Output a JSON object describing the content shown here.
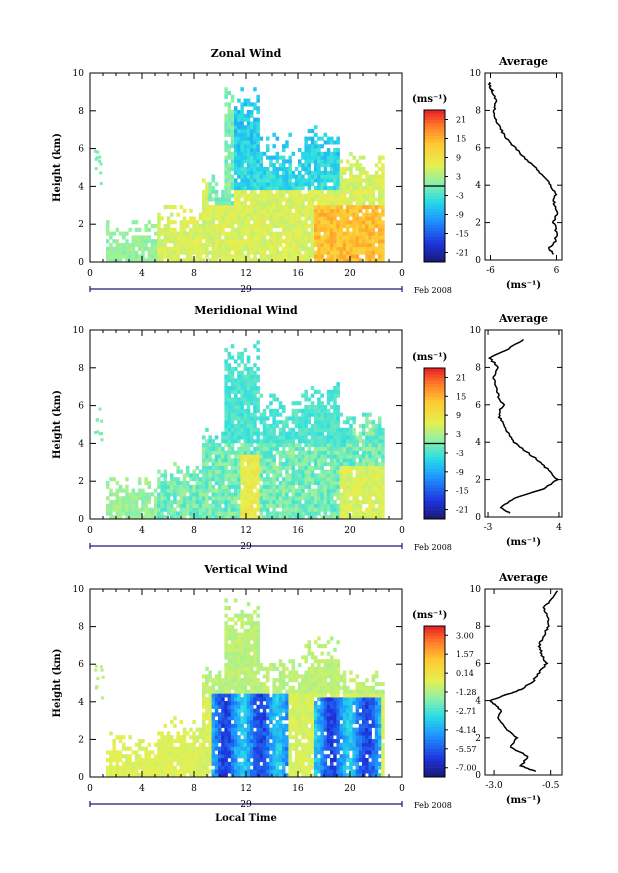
{
  "chart_data": [
    {
      "type": "heatmap",
      "title": "Zonal Wind",
      "ylabel": "Height (km)",
      "xlabel": "",
      "x_ticks": [
        "0",
        "4",
        "8",
        "12",
        "16",
        "20",
        "0"
      ],
      "y_ticks": [
        "0",
        "2",
        "4",
        "6",
        "8",
        "10"
      ],
      "xlim": [
        0,
        24
      ],
      "ylim": [
        0,
        10
      ],
      "date_label": "29",
      "date_suffix": "Feb 2008",
      "colorbar": {
        "unit": "(ms⁻¹)",
        "ticks": [
          "21",
          "15",
          "9",
          "3",
          "-3",
          "-9",
          "-15",
          "-21"
        ],
        "min": -24,
        "max": 24
      },
      "profile": {
        "title": "Average",
        "xlabel": "(ms⁻¹)",
        "x_ticks": [
          "-6",
          "6"
        ],
        "xlim": [
          -7,
          7
        ],
        "y_ticks": [
          "0",
          "2",
          "4",
          "6",
          "8",
          "10"
        ],
        "heights": [
          0.3,
          0.6,
          1,
          1.5,
          2,
          2.5,
          3,
          3.5,
          4,
          4.5,
          5,
          5.5,
          6,
          6.5,
          7,
          7.5,
          8,
          8.5,
          9,
          9.2,
          9.5
        ],
        "values": [
          5.5,
          4.5,
          5.8,
          6.0,
          5.5,
          6.0,
          5.5,
          5.8,
          5.0,
          3.5,
          2.0,
          0.0,
          -1.5,
          -3.0,
          -4.2,
          -5.0,
          -5.4,
          -5.0,
          -5.6,
          -6.0,
          -6.2
        ]
      }
    },
    {
      "type": "heatmap",
      "title": "Meridional Wind",
      "ylabel": "Height (km)",
      "xlabel": "",
      "x_ticks": [
        "0",
        "4",
        "8",
        "12",
        "16",
        "20",
        "0"
      ],
      "y_ticks": [
        "0",
        "2",
        "4",
        "6",
        "8",
        "10"
      ],
      "xlim": [
        0,
        24
      ],
      "ylim": [
        0,
        10
      ],
      "date_label": "29",
      "date_suffix": "Feb 2008",
      "colorbar": {
        "unit": "(ms⁻¹)",
        "ticks": [
          "21",
          "15",
          "9",
          "3",
          "-3",
          "-9",
          "-15",
          "-21"
        ],
        "min": -24,
        "max": 24
      },
      "profile": {
        "title": "Average",
        "xlabel": "(ms⁻¹)",
        "x_ticks": [
          "-3",
          "4"
        ],
        "xlim": [
          -3.3,
          4.3
        ],
        "y_ticks": [
          "0",
          "2",
          "4",
          "6",
          "8",
          "10"
        ],
        "heights": [
          0.2,
          0.5,
          1,
          1.5,
          2,
          2.5,
          3,
          3.5,
          4,
          4.5,
          5,
          5.5,
          6,
          6.5,
          7,
          7.5,
          8,
          8.5,
          9,
          9.5
        ],
        "values": [
          -0.8,
          -1.8,
          -0.5,
          2.5,
          3.8,
          3.0,
          2.0,
          0.8,
          -0.5,
          -1.0,
          -1.5,
          -2.0,
          -1.5,
          -2.0,
          -2.3,
          -2.5,
          -2.0,
          -2.8,
          -1.0,
          0.5
        ]
      }
    },
    {
      "type": "heatmap",
      "title": "Vertical Wind",
      "ylabel": "Height (km)",
      "xlabel": "Local Time",
      "x_ticks": [
        "0",
        "4",
        "8",
        "12",
        "16",
        "20",
        "0"
      ],
      "y_ticks": [
        "0",
        "2",
        "4",
        "6",
        "8",
        "10"
      ],
      "xlim": [
        0,
        24
      ],
      "ylim": [
        0,
        10
      ],
      "date_label": "29",
      "date_suffix": "Feb 2008",
      "colorbar": {
        "unit": "(ms⁻¹)",
        "ticks": [
          "3.00",
          "1.57",
          "0.14",
          "-1.28",
          "-2.71",
          "-4.14",
          "-5.57",
          "-7.00"
        ],
        "min": -7.7,
        "max": 3.7
      },
      "profile": {
        "title": "Average",
        "xlabel": "(ms⁻¹)",
        "x_ticks": [
          "-3.0",
          "-0.5"
        ],
        "xlim": [
          -3.4,
          0.0
        ],
        "y_ticks": [
          "0",
          "2",
          "4",
          "6",
          "8",
          "10"
        ],
        "heights": [
          0.2,
          0.5,
          1,
          1.5,
          2,
          2.5,
          3,
          3.5,
          3.8,
          4.0,
          4.3,
          4.6,
          5,
          5.5,
          6,
          6.5,
          7,
          7.5,
          8,
          8.5,
          9,
          9.5,
          9.9
        ],
        "values": [
          -1.2,
          -1.8,
          -1.5,
          -2.3,
          -2.0,
          -2.5,
          -2.8,
          -2.7,
          -3.0,
          -3.2,
          -2.5,
          -1.8,
          -1.3,
          -1.0,
          -0.7,
          -0.9,
          -1.0,
          -0.8,
          -0.6,
          -0.6,
          -0.8,
          -0.4,
          -0.2
        ]
      }
    }
  ]
}
